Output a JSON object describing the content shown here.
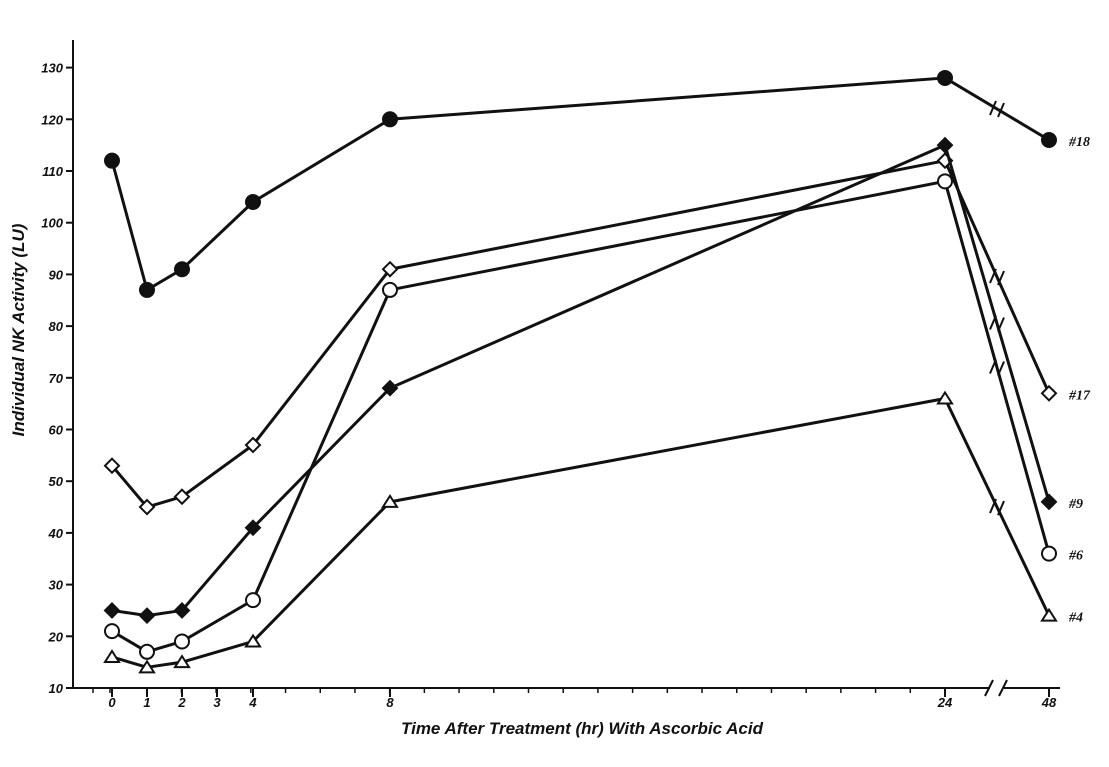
{
  "chart_data": {
    "type": "line",
    "title": "",
    "xlabel": "Time After Treatment (hr) With Ascorbic Acid",
    "ylabel": "Individual NK Activity (LU)",
    "ylim": [
      10,
      130
    ],
    "yticks": [
      10,
      20,
      30,
      40,
      50,
      60,
      70,
      80,
      90,
      100,
      110,
      120,
      130
    ],
    "xtick_labels": [
      "0",
      "1",
      "2",
      "3",
      "4",
      "8",
      "24",
      "48"
    ],
    "x_axis_break": "between 24 and 48",
    "grid": false,
    "series": [
      {
        "name": "#18",
        "marker": "filled-circle",
        "x": [
          0,
          1,
          2,
          4,
          8,
          24,
          48
        ],
        "values": [
          112,
          87,
          91,
          104,
          120,
          128,
          116
        ]
      },
      {
        "name": "#17",
        "marker": "open-diamond",
        "x": [
          0,
          1,
          2,
          4,
          8,
          24,
          48
        ],
        "values": [
          53,
          45,
          47,
          57,
          91,
          112,
          67
        ]
      },
      {
        "name": "#9",
        "marker": "filled-diamond",
        "x": [
          0,
          1,
          2,
          4,
          8,
          24,
          48
        ],
        "values": [
          25,
          24,
          25,
          41,
          68,
          115,
          46
        ]
      },
      {
        "name": "#6",
        "marker": "open-circle",
        "x": [
          0,
          1,
          2,
          4,
          8,
          24,
          48
        ],
        "values": [
          21,
          17,
          19,
          27,
          87,
          108,
          36
        ]
      },
      {
        "name": "#4",
        "marker": "open-triangle",
        "x": [
          0,
          1,
          2,
          4,
          8,
          24,
          48
        ],
        "values": [
          16,
          14,
          15,
          19,
          46,
          66,
          24
        ]
      }
    ]
  }
}
